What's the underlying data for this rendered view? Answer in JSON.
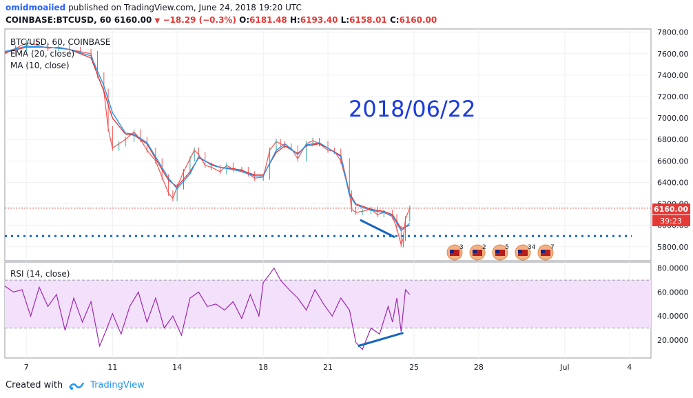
{
  "header": {
    "author": "omidmoaiied",
    "published": " published on TradingView.com, June 24, 2018 19:20 UTC",
    "symbol": "COINBASE:BTCUSD, 60",
    "price": "6160.00",
    "change": "−18.29 (−0.3%)",
    "o_label": "O:",
    "o": "6181.48",
    "h_label": "H:",
    "h": "6193.40",
    "l_label": "L:",
    "l": "6158.01",
    "c_label": "C:",
    "c": "6160.00"
  },
  "legend": {
    "symbol": "BTC/USD, 60, COINBASE",
    "ema": "EMA (20, close)",
    "ma": "MA (10, close)",
    "rsi": "RSI (14, close)"
  },
  "annotation": "2018/06/22",
  "price_badge": "6160.00",
  "timer_badge": "39:23",
  "event_counts": [
    "3",
    "2",
    "5",
    "34",
    "7"
  ],
  "footer": {
    "created_with": "Created with",
    "brand": "TradingView"
  },
  "colors": {
    "candle_up": "#26a69a",
    "candle_down": "#ef5350",
    "ema": "#e53935",
    "ma": "#2196f3",
    "rsi": "#9c27b0",
    "rsi_band": "#f3e0fb",
    "annotation": "#1a3be0",
    "drawn_line": "#1565c0"
  },
  "chart_data": [
    {
      "type": "line",
      "title": "BTC/USD, 60, COINBASE",
      "y_axis_ticks": [
        "5800.00",
        "6000.00",
        "6200.00",
        "6400.00",
        "6600.00",
        "6800.00",
        "7000.00",
        "7200.00",
        "7400.00",
        "7600.00",
        "7800.00"
      ],
      "ylim": [
        5670,
        7830
      ],
      "x_axis_ticks": [
        "7",
        "11",
        "14",
        "18",
        "21",
        "25",
        "28",
        "Jul",
        "4"
      ],
      "x_tick_days": [
        7,
        11,
        14,
        18,
        21,
        25,
        28,
        32,
        35
      ],
      "xlim": [
        6,
        36
      ],
      "series": [
        {
          "name": "BTC/USD",
          "x": [
            6,
            6.5,
            7,
            7.5,
            8,
            8.5,
            9,
            9.5,
            10,
            10.3,
            10.6,
            10.8,
            11,
            11.3,
            11.6,
            12,
            12.3,
            12.6,
            13,
            13.3,
            13.6,
            13.8,
            14,
            14.3,
            14.6,
            14.8,
            15,
            15.3,
            15.6,
            16,
            16.3,
            16.6,
            17,
            17.3,
            17.6,
            18,
            18.3,
            18.6,
            18.8,
            19,
            19.3,
            19.6,
            20,
            20.3,
            20.6,
            21,
            21.3,
            21.6,
            22,
            22.1,
            22.3,
            22.6,
            23,
            23.3,
            23.6,
            24,
            24.2,
            24.4,
            24.5,
            24.6,
            24.8
          ],
          "y": [
            7600,
            7650,
            7700,
            7680,
            7650,
            7660,
            7640,
            7620,
            7600,
            7400,
            7250,
            6900,
            6720,
            6760,
            6800,
            6870,
            6800,
            6700,
            6600,
            6450,
            6300,
            6250,
            6360,
            6500,
            6620,
            6700,
            6660,
            6560,
            6540,
            6500,
            6560,
            6520,
            6520,
            6480,
            6440,
            6450,
            6700,
            6780,
            6760,
            6740,
            6720,
            6620,
            6760,
            6790,
            6760,
            6700,
            6690,
            6600,
            6300,
            6150,
            6120,
            6130,
            6150,
            6100,
            6120,
            6080,
            5970,
            5820,
            5880,
            6060,
            6160
          ]
        },
        {
          "name": "EMA (20, close)",
          "x": [
            6,
            7,
            8,
            9,
            10,
            10.6,
            11,
            11.6,
            12,
            12.6,
            13,
            13.6,
            14,
            14.6,
            15,
            15.6,
            16,
            16.6,
            17,
            17.6,
            18,
            18.6,
            19,
            19.6,
            20,
            20.6,
            21,
            21.6,
            22,
            22.3,
            23,
            23.6,
            24,
            24.4,
            24.8
          ],
          "y": [
            7610,
            7660,
            7660,
            7640,
            7560,
            7250,
            7000,
            6850,
            6840,
            6760,
            6620,
            6420,
            6360,
            6500,
            6630,
            6570,
            6540,
            6530,
            6510,
            6470,
            6470,
            6680,
            6740,
            6670,
            6740,
            6760,
            6720,
            6650,
            6300,
            6200,
            6150,
            6130,
            6100,
            5970,
            6000
          ]
        },
        {
          "name": "MA (10, close)",
          "x": [
            6,
            7,
            8,
            9,
            10,
            10.6,
            11,
            11.6,
            12,
            12.6,
            13,
            13.6,
            14,
            14.6,
            15,
            15.6,
            16,
            16.6,
            17,
            17.6,
            18,
            18.6,
            19,
            19.6,
            20,
            20.6,
            21,
            21.6,
            22,
            22.3,
            23,
            23.6,
            24,
            24.4,
            24.8
          ],
          "y": [
            7620,
            7670,
            7660,
            7640,
            7580,
            7300,
            7050,
            6860,
            6850,
            6770,
            6640,
            6440,
            6340,
            6480,
            6640,
            6560,
            6540,
            6520,
            6500,
            6460,
            6460,
            6700,
            6760,
            6660,
            6750,
            6770,
            6720,
            6640,
            6280,
            6190,
            6140,
            6120,
            6090,
            5950,
            6020
          ]
        }
      ],
      "horizontal_levels": [
        {
          "label": "dotted support",
          "y": 5900
        },
        {
          "label": "last price",
          "y": 6160
        }
      ],
      "trend_line": {
        "x": [
          22.5,
          24.1
        ],
        "y": [
          6050,
          5890
        ]
      }
    },
    {
      "type": "line",
      "title": "RSI (14, close)",
      "y_axis_ticks": [
        "20.0000",
        "40.0000",
        "60.0000",
        "80.0000"
      ],
      "ylim": [
        5,
        85
      ],
      "band": [
        30,
        70
      ],
      "xlim": [
        6,
        36
      ],
      "series": [
        {
          "name": "RSI (14, close)",
          "x": [
            6,
            6.4,
            6.8,
            7.2,
            7.6,
            8,
            8.4,
            8.8,
            9.2,
            9.6,
            10,
            10.4,
            10.7,
            11,
            11.4,
            11.8,
            12.2,
            12.6,
            13,
            13.4,
            13.8,
            14.2,
            14.6,
            15,
            15.4,
            15.8,
            16.2,
            16.6,
            17,
            17.4,
            17.8,
            18,
            18.3,
            18.5,
            18.8,
            19.2,
            19.6,
            20,
            20.4,
            20.8,
            21.2,
            21.6,
            22,
            22.3,
            22.6,
            23,
            23.4,
            23.8,
            24,
            24.2,
            24.4,
            24.6,
            24.8
          ],
          "y": [
            65,
            60,
            62,
            40,
            64,
            48,
            58,
            28,
            55,
            35,
            52,
            15,
            28,
            42,
            25,
            48,
            60,
            35,
            55,
            30,
            40,
            24,
            55,
            60,
            48,
            50,
            45,
            52,
            38,
            58,
            40,
            68,
            75,
            80,
            70,
            62,
            55,
            45,
            62,
            50,
            40,
            55,
            45,
            18,
            12,
            30,
            25,
            48,
            35,
            55,
            27,
            62,
            58
          ]
        }
      ],
      "trend_line": {
        "x": [
          22.4,
          24.5
        ],
        "y": [
          15,
          26
        ]
      }
    }
  ]
}
